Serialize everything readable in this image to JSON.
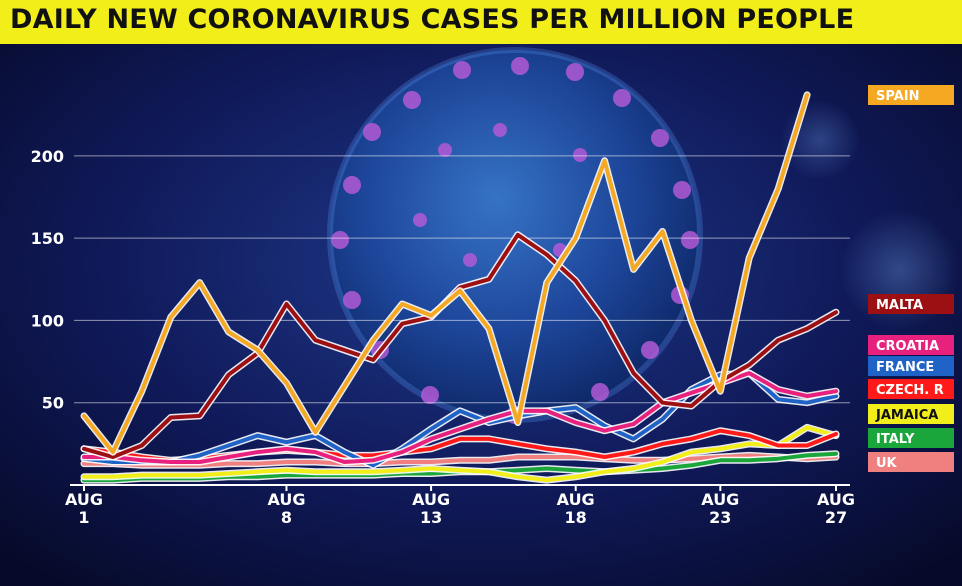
{
  "header": {
    "title": "DAILY NEW CORONAVIRUS CASES PER MILLION PEOPLE"
  },
  "chart_data": {
    "type": "line",
    "title": "DAILY NEW CORONAVIRUS CASES PER MILLION PEOPLE",
    "xlabel": "",
    "ylabel": "",
    "x": [
      1,
      2,
      3,
      4,
      5,
      6,
      7,
      8,
      9,
      10,
      11,
      12,
      13,
      14,
      15,
      16,
      17,
      18,
      19,
      20,
      21,
      22,
      23,
      24,
      25,
      26,
      27
    ],
    "xticks": [
      {
        "x": 1,
        "lines": [
          "AUG",
          "1"
        ]
      },
      {
        "x": 8,
        "lines": [
          "AUG",
          "8"
        ]
      },
      {
        "x": 13,
        "lines": [
          "AUG",
          "13"
        ]
      },
      {
        "x": 18,
        "lines": [
          "AUG",
          "18"
        ]
      },
      {
        "x": 23,
        "lines": [
          "AUG",
          "23"
        ]
      },
      {
        "x": 27,
        "lines": [
          "AUG",
          "27"
        ]
      }
    ],
    "yticks": [
      50,
      100,
      150,
      200
    ],
    "xlim": [
      1,
      27
    ],
    "ylim": [
      0,
      240
    ],
    "grid": true,
    "legend_position": "right",
    "series": [
      {
        "name": "SPAIN",
        "color": "#f5a821",
        "text_color": "#ffffff",
        "values": [
          42,
          20,
          57,
          102,
          123,
          93,
          82,
          62,
          32,
          60,
          88,
          110,
          103,
          118,
          95,
          38,
          123,
          150,
          197,
          131,
          154,
          100,
          57,
          138,
          180,
          237,
          null
        ]
      },
      {
        "name": "MALTA",
        "color": "#9c0f12",
        "text_color": "#ffffff",
        "values": [
          22,
          17,
          24,
          41,
          42,
          67,
          80,
          110,
          88,
          82,
          76,
          98,
          102,
          120,
          125,
          152,
          140,
          124,
          100,
          68,
          50,
          48,
          63,
          73,
          88,
          95,
          105
        ]
      },
      {
        "name": "CROATIA",
        "color": "#e8217e",
        "text_color": "#ffffff",
        "values": [
          17,
          17,
          15,
          14,
          14,
          17,
          20,
          22,
          20,
          14,
          15,
          20,
          28,
          34,
          40,
          45,
          45,
          38,
          33,
          37,
          50,
          56,
          62,
          68,
          58,
          54,
          57
        ]
      },
      {
        "name": "FRANCE",
        "color": "#1f63c6",
        "text_color": "#ffffff",
        "values": [
          16,
          14,
          14,
          14,
          18,
          24,
          30,
          26,
          30,
          20,
          12,
          22,
          34,
          45,
          38,
          42,
          45,
          47,
          36,
          28,
          40,
          58,
          67,
          68,
          52,
          50,
          54
        ]
      },
      {
        "name": "CZECH. R",
        "color": "#ff1a1a",
        "text_color": "#ffffff",
        "values": [
          22,
          20,
          17,
          15,
          16,
          18,
          20,
          21,
          20,
          18,
          18,
          20,
          22,
          28,
          28,
          25,
          22,
          20,
          17,
          20,
          25,
          28,
          33,
          30,
          24,
          24,
          31
        ]
      },
      {
        "name": "JAMAICA",
        "color": "#f2ee1a",
        "text_color": "#111111",
        "values": [
          5,
          5,
          6,
          6,
          6,
          7,
          8,
          9,
          8,
          8,
          8,
          9,
          10,
          9,
          8,
          5,
          3,
          5,
          8,
          10,
          14,
          20,
          22,
          25,
          24,
          35,
          30
        ]
      },
      {
        "name": "ITALY",
        "color": "#1aa63a",
        "text_color": "#ffffff",
        "values": [
          3,
          3,
          4,
          4,
          4,
          5,
          5,
          6,
          6,
          6,
          6,
          7,
          7,
          8,
          8,
          9,
          10,
          9,
          8,
          9,
          10,
          12,
          15,
          15,
          16,
          18,
          19
        ]
      },
      {
        "name": "UK",
        "color": "#f08080",
        "text_color": "#ffffff",
        "values": [
          13,
          13,
          12,
          12,
          12,
          13,
          13,
          14,
          14,
          13,
          13,
          14,
          14,
          15,
          15,
          17,
          17,
          17,
          16,
          15,
          15,
          16,
          17,
          18,
          17,
          16,
          17
        ]
      }
    ]
  }
}
